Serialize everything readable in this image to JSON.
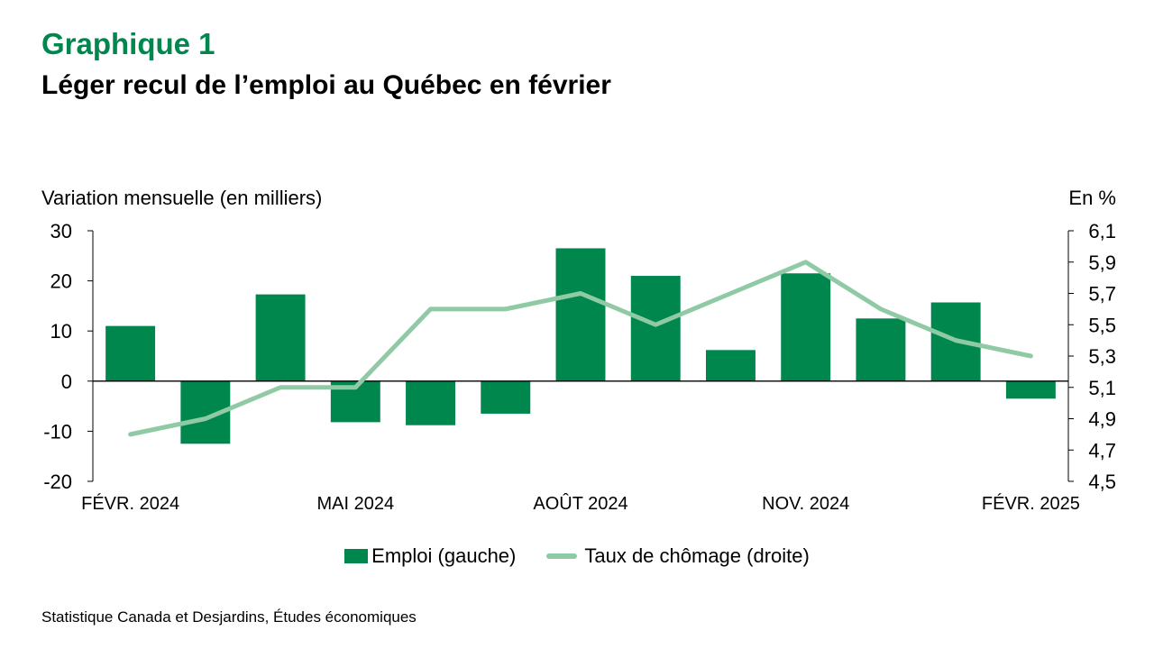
{
  "header": {
    "label": "Graphique 1",
    "title": "Léger recul de l’emploi au Québec en février"
  },
  "colors": {
    "bar": "#00874e",
    "line": "#8fcaa5",
    "label": "#00874e"
  },
  "chart_data": {
    "type": "bar",
    "left_axis_title": "Variation mensuelle (en milliers)",
    "right_axis_title": "En %",
    "x_tick_labels": [
      "FÉVR. 2024",
      "MAI  2024",
      "AOÛT  2024",
      "NOV. 2024",
      "FÉVR. 2025"
    ],
    "x_tick_positions": [
      0,
      3,
      6,
      9,
      12
    ],
    "categories": [
      "2024-02",
      "2024-03",
      "2024-04",
      "2024-05",
      "2024-06",
      "2024-07",
      "2024-08",
      "2024-09",
      "2024-10",
      "2024-11",
      "2024-12",
      "2025-01",
      "2025-02"
    ],
    "ylim_left": [
      -20,
      30
    ],
    "yticks_left": [
      "30",
      "20",
      "10",
      "0",
      "-10",
      "-20"
    ],
    "ylim_right": [
      4.5,
      6.1
    ],
    "yticks_right": [
      "6,1",
      "5,9",
      "5,7",
      "5,5",
      "5,3",
      "5,1",
      "4,9",
      "4,7",
      "4,5"
    ],
    "series": [
      {
        "name": "Emploi (gauche)",
        "type": "bar",
        "axis": "left",
        "values": [
          11.0,
          -12.5,
          17.3,
          -8.2,
          -8.8,
          -6.5,
          26.5,
          21.0,
          6.2,
          21.5,
          12.5,
          15.7,
          -3.5
        ]
      },
      {
        "name": "Taux de chômage (droite)",
        "type": "line",
        "axis": "right",
        "values": [
          4.8,
          4.9,
          5.1,
          5.1,
          5.6,
          5.6,
          5.7,
          5.5,
          5.7,
          5.9,
          5.6,
          5.4,
          5.3
        ]
      }
    ]
  },
  "source": "Statistique Canada et Desjardins, Études économiques"
}
